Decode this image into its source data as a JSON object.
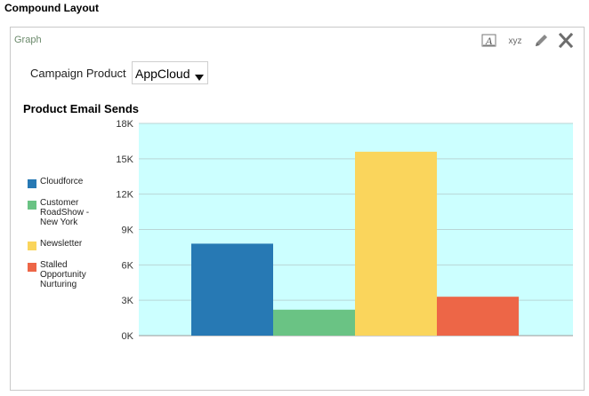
{
  "page": {
    "title": "Compound Layout"
  },
  "panel": {
    "label": "Graph",
    "tools": [
      {
        "name": "format-text-icon",
        "label": "A"
      },
      {
        "name": "data-format-icon",
        "label": "xyz"
      },
      {
        "name": "edit-pencil-icon"
      },
      {
        "name": "close-icon"
      }
    ]
  },
  "prompt": {
    "label": "Campaign Product",
    "value": "AppCloud"
  },
  "chart_data": {
    "type": "bar",
    "title": "Product Email Sends",
    "xlabel": "",
    "ylabel": "",
    "ylim": [
      0,
      18000
    ],
    "yticks": [
      "0K",
      "3K",
      "6K",
      "9K",
      "12K",
      "15K",
      "18K"
    ],
    "grid": true,
    "legend_position": "left",
    "plot_background": "#ccffff",
    "series": [
      {
        "name": "Cloudforce",
        "value": 7800,
        "color": "#2779b4"
      },
      {
        "name": "Customer RoadShow - New York",
        "value": 2200,
        "color": "#6ac384"
      },
      {
        "name": "Newsletter",
        "value": 15600,
        "color": "#fad55c"
      },
      {
        "name": "Stalled Opportunity Nurturing",
        "value": 3300,
        "color": "#ed6647"
      }
    ]
  }
}
